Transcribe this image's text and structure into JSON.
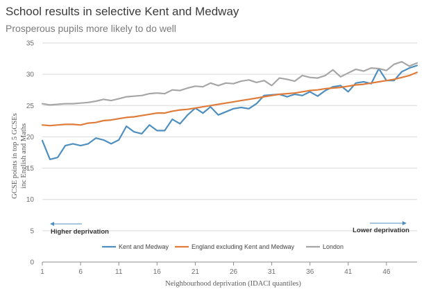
{
  "chart_data": {
    "type": "line",
    "title": "School results in selective Kent and Medway",
    "subtitle": "Prosperous pupils more likely to do well",
    "xlabel": "Neighbourhood deprivation (IDACI quantiles)",
    "ylabel_lines": [
      "GCSE points in top 5 GCSEs",
      "inc English and Maths"
    ],
    "ylim": [
      0,
      35
    ],
    "yticks": [
      0,
      5,
      10,
      15,
      20,
      25,
      30,
      35
    ],
    "xlim": [
      1,
      50
    ],
    "xticks": [
      1,
      6,
      11,
      16,
      21,
      26,
      31,
      36,
      41,
      46
    ],
    "grid": "horizontal",
    "legend_position": "bottom",
    "annotations": {
      "left": "Higher deprivation",
      "right": "Lower deprivation"
    },
    "x": [
      1,
      2,
      3,
      4,
      5,
      6,
      7,
      8,
      9,
      10,
      11,
      12,
      13,
      14,
      15,
      16,
      17,
      18,
      19,
      20,
      21,
      22,
      23,
      24,
      25,
      26,
      27,
      28,
      29,
      30,
      31,
      32,
      33,
      34,
      35,
      36,
      37,
      38,
      39,
      40,
      41,
      42,
      43,
      44,
      45,
      46,
      47,
      48,
      49,
      50
    ],
    "series": [
      {
        "name": "Kent and Medway",
        "color": "#4f8fc0",
        "values": [
          19.4,
          16.4,
          16.7,
          18.6,
          18.9,
          18.6,
          18.9,
          19.8,
          19.5,
          18.9,
          19.5,
          21.7,
          20.8,
          20.5,
          21.9,
          21.0,
          21.0,
          22.8,
          22.1,
          23.5,
          24.6,
          23.8,
          24.8,
          23.5,
          24.0,
          24.5,
          24.7,
          24.5,
          25.3,
          26.6,
          26.7,
          26.8,
          26.4,
          26.8,
          26.6,
          27.2,
          26.5,
          27.4,
          28.0,
          28.2,
          27.2,
          28.6,
          28.8,
          28.5,
          30.9,
          29.0,
          29.0,
          30.4,
          31.0,
          31.4
        ]
      },
      {
        "name": "England excluding Kent and Medway",
        "color": "#e07b39",
        "values": [
          21.9,
          21.8,
          21.9,
          22.0,
          22.0,
          21.9,
          22.2,
          22.3,
          22.6,
          22.7,
          22.9,
          23.1,
          23.2,
          23.4,
          23.6,
          23.8,
          23.8,
          24.1,
          24.3,
          24.4,
          24.6,
          24.8,
          25.0,
          25.2,
          25.4,
          25.6,
          25.8,
          26.0,
          26.2,
          26.4,
          26.6,
          26.8,
          26.9,
          27.0,
          27.2,
          27.4,
          27.5,
          27.7,
          27.8,
          27.9,
          28.1,
          28.3,
          28.4,
          28.6,
          28.8,
          29.0,
          29.2,
          29.5,
          29.8,
          30.3
        ]
      },
      {
        "name": "London",
        "color": "#a6a6a6",
        "values": [
          25.3,
          25.1,
          25.2,
          25.3,
          25.3,
          25.4,
          25.5,
          25.7,
          26.0,
          25.8,
          26.1,
          26.4,
          26.5,
          26.6,
          26.9,
          27.0,
          26.9,
          27.5,
          27.4,
          27.8,
          28.1,
          28.0,
          28.6,
          28.2,
          28.6,
          28.5,
          28.9,
          29.1,
          28.7,
          29.0,
          28.2,
          29.4,
          29.2,
          28.9,
          29.8,
          29.5,
          29.4,
          29.8,
          30.7,
          29.6,
          30.2,
          30.8,
          30.5,
          31.0,
          30.9,
          30.6,
          31.6,
          32.0,
          31.3,
          31.8
        ]
      }
    ]
  }
}
